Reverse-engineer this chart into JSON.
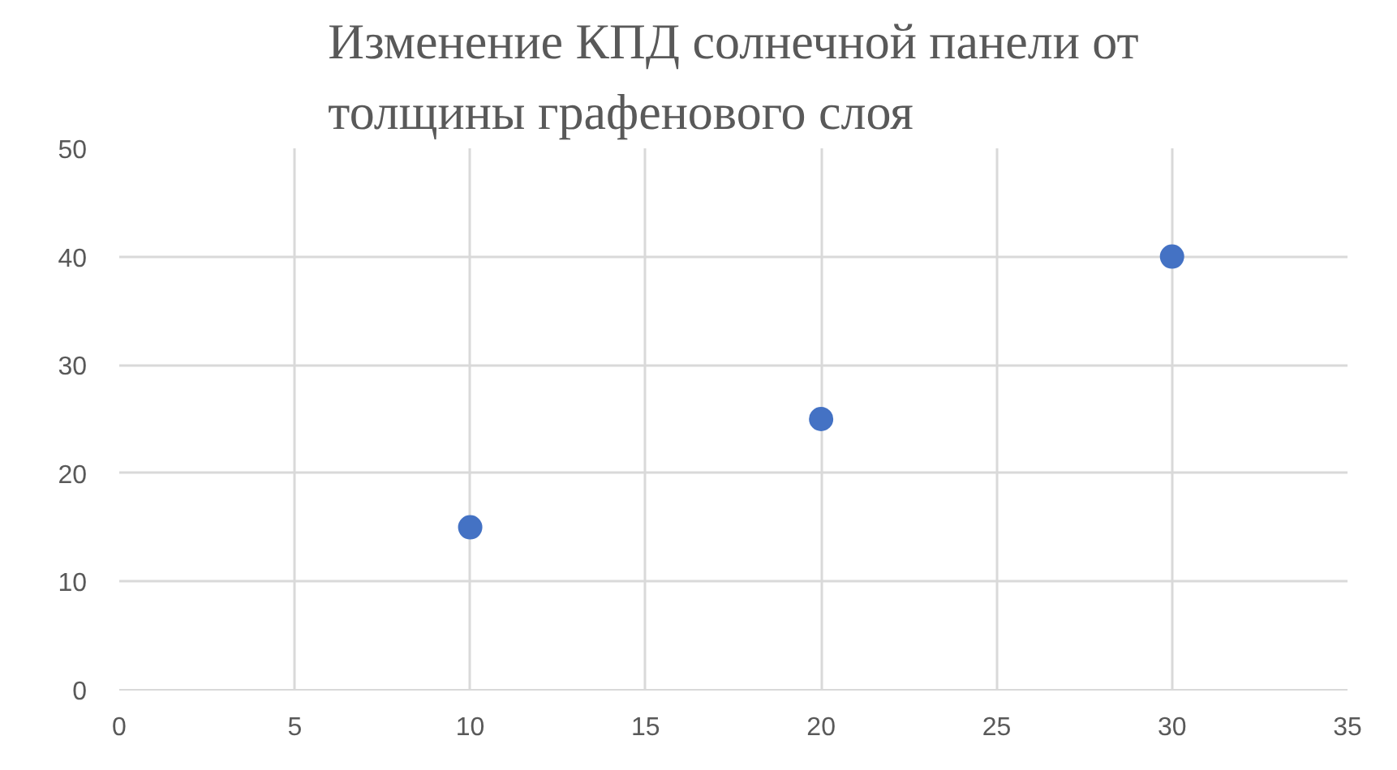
{
  "chart_data": {
    "type": "scatter",
    "title": "Изменение КПД солнечной панели от\nтолщины графенового слоя",
    "x": [
      10,
      20,
      30
    ],
    "series": [
      {
        "color": "#4472c4",
        "values": [
          15,
          25,
          40
        ]
      }
    ],
    "xlim": [
      0,
      35
    ],
    "xticks": [
      0,
      5,
      10,
      15,
      20,
      25,
      30,
      35
    ],
    "ylim": [
      0,
      50
    ],
    "yticks": [
      0,
      10,
      20,
      30,
      40,
      50
    ],
    "grid": true,
    "marker": "circle"
  }
}
